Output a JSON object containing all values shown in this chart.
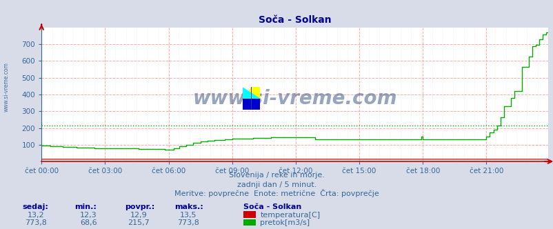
{
  "title": "Soča - Solkan",
  "bg_color": "#d8dce8",
  "plot_bg_color": "#ffffff",
  "grid_color_major": "#ffaaaa",
  "grid_color_minor": "#ffdddd",
  "title_color": "#000099",
  "axis_label_color": "#336699",
  "text_color": "#336699",
  "watermark": "www.si-vreme.com",
  "watermark_color": "#1a3a6e",
  "subtitle1": "Slovenija / reke in morje.",
  "subtitle2": "zadnji dan / 5 minut.",
  "subtitle3": "Meritve: povprečne  Enote: metrične  Črta: povprečje",
  "legend_title": "Soča - Solkan",
  "legend_temp_label": "temperatura[C]",
  "legend_flow_label": "pretok[m3/s]",
  "legend_temp_color": "#cc0000",
  "legend_flow_color": "#00aa00",
  "stats_headers": [
    "sedaj:",
    "min.:",
    "povpr.:",
    "maks.:"
  ],
  "stats_temp": [
    "13,2",
    "12,3",
    "12,9",
    "13,5"
  ],
  "stats_flow": [
    "773,8",
    "68,6",
    "215,7",
    "773,8"
  ],
  "xlim": [
    0,
    287
  ],
  "ylim": [
    0,
    800
  ],
  "yticks": [
    100,
    200,
    300,
    400,
    500,
    600,
    700
  ],
  "avg_flow": 215.7,
  "temp_color": "#cc0000",
  "flow_color": "#00aa00",
  "xtick_positions": [
    0,
    36,
    72,
    108,
    144,
    180,
    216,
    252
  ],
  "xtick_labels": [
    "čet 00:00",
    "čet 03:00",
    "čet 06:00",
    "čet 09:00",
    "čet 12:00",
    "čet 15:00",
    "čet 18:00",
    "čet 21:00"
  ]
}
